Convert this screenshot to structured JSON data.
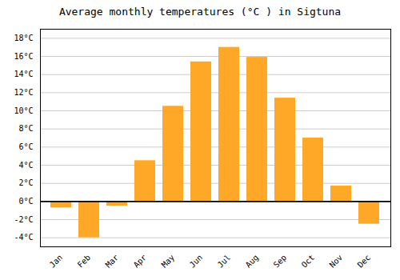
{
  "chart_data": {
    "type": "bar",
    "title": "Average monthly temperatures (°C ) in Sigtuna",
    "categories": [
      "Jan",
      "Feb",
      "Mar",
      "Apr",
      "May",
      "Jun",
      "Jul",
      "Aug",
      "Sep",
      "Oct",
      "Nov",
      "Dec"
    ],
    "values": [
      -0.7,
      -4.0,
      -0.5,
      4.5,
      10.5,
      15.4,
      17.0,
      15.9,
      11.4,
      7.0,
      1.7,
      -2.5
    ],
    "color": "#FFA726",
    "ylim": [
      -5,
      19
    ],
    "yticks": [
      {
        "value": -4,
        "label": "-4°C"
      },
      {
        "value": -2,
        "label": "-2°C"
      },
      {
        "value": 0,
        "label": "0°C"
      },
      {
        "value": 2,
        "label": "2°C"
      },
      {
        "value": 4,
        "label": "4°C"
      },
      {
        "value": 6,
        "label": "6°C"
      },
      {
        "value": 8,
        "label": "8°C"
      },
      {
        "value": 10,
        "label": "10°C"
      },
      {
        "value": 12,
        "label": "12°C"
      },
      {
        "value": 14,
        "label": "14°C"
      },
      {
        "value": 16,
        "label": "16°C"
      },
      {
        "value": 18,
        "label": "18°C"
      }
    ],
    "grid": true
  }
}
